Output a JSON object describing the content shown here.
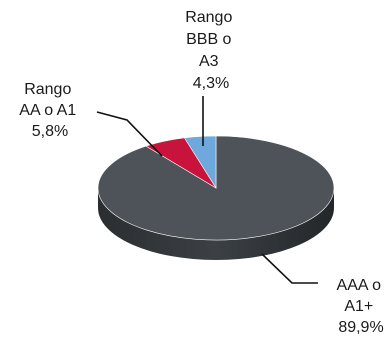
{
  "chart_data": {
    "type": "pie",
    "title": "",
    "style": "3d",
    "slices": [
      {
        "label_lines": [
          "AAA o",
          "A1+"
        ],
        "value": 89.9,
        "value_label": "89,9%",
        "color": "#4d5358"
      },
      {
        "label_lines": [
          "Rango",
          "AA o A1"
        ],
        "value": 5.8,
        "value_label": "5,8%",
        "color": "#c8143c"
      },
      {
        "label_lines": [
          "Rango",
          "BBB o",
          "A3"
        ],
        "value": 4.3,
        "value_label": "4,3%",
        "color": "#6fa8dc"
      }
    ],
    "legend": "none",
    "data_labels": "outside-with-leader-lines"
  }
}
